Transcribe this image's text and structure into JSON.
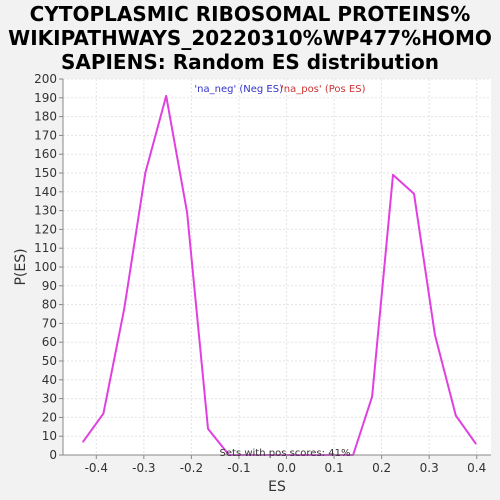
{
  "chart_data": {
    "type": "line",
    "title_lines": [
      "CYTOPLASMIC RIBOSOMAL PROTEINS%",
      "WIKIPATHWAYS_20220310%WP477%HOMO",
      "SAPIENS: Random ES distribution"
    ],
    "xlabel": "ES",
    "ylabel": "P(ES)",
    "xlim": [
      -0.47,
      0.43
    ],
    "ylim": [
      0,
      200
    ],
    "xticks": [
      -0.4,
      -0.3,
      -0.2,
      -0.1,
      0.0,
      0.1,
      0.2,
      0.3,
      0.4
    ],
    "xtick_labels": [
      "-0.4",
      "-0.3",
      "-0.2",
      "-0.1",
      "0.0",
      "0.1",
      "0.2",
      "0.3",
      "0.4"
    ],
    "yticks": [
      0,
      10,
      20,
      30,
      40,
      50,
      60,
      70,
      80,
      90,
      100,
      110,
      120,
      130,
      140,
      150,
      160,
      170,
      180,
      190,
      200
    ],
    "grid": true,
    "legend": {
      "placement": "top-center",
      "entries": [
        {
          "label": "'na_neg' (Neg ES)",
          "color": "#3333cc"
        },
        {
          "label": "'na_pos' (Pos ES)",
          "color": "#cc3333"
        }
      ]
    },
    "annotation": "Sets with pos scores: 41%",
    "series": [
      {
        "color": "#e040e0",
        "x": [
          -0.428,
          -0.385,
          -0.341,
          -0.297,
          -0.253,
          -0.209,
          -0.165,
          -0.121,
          0.14,
          0.18,
          0.224,
          0.268,
          0.312,
          0.356,
          0.398
        ],
        "y": [
          7,
          22,
          78,
          150,
          191,
          129,
          14,
          0,
          0,
          31,
          149,
          139,
          64,
          21,
          6
        ]
      }
    ]
  }
}
